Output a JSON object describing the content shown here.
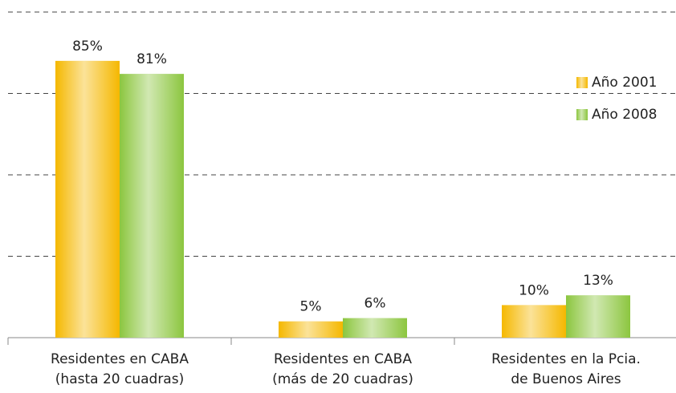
{
  "chart_data": {
    "type": "bar",
    "categories": [
      "Residentes en CABA\n(hasta 20 cuadras)",
      "Residentes en CABA\n(más de 20 cuadras)",
      "Residentes en la Pcia.\nde Buenos Aires"
    ],
    "series": [
      {
        "name": "Año 2001",
        "color": "#f5b800",
        "values": [
          85,
          5,
          10
        ],
        "value_labels": [
          "85%",
          "5%",
          "10%"
        ]
      },
      {
        "name": "Año 2008",
        "color": "#8cc63f",
        "values": [
          81,
          6,
          13
        ],
        "value_labels": [
          "81%",
          "6%",
          "13%"
        ]
      }
    ],
    "ylim": [
      0,
      100
    ],
    "yticks": [
      0,
      25,
      50,
      75,
      100
    ],
    "grid": true,
    "legend": "right"
  }
}
